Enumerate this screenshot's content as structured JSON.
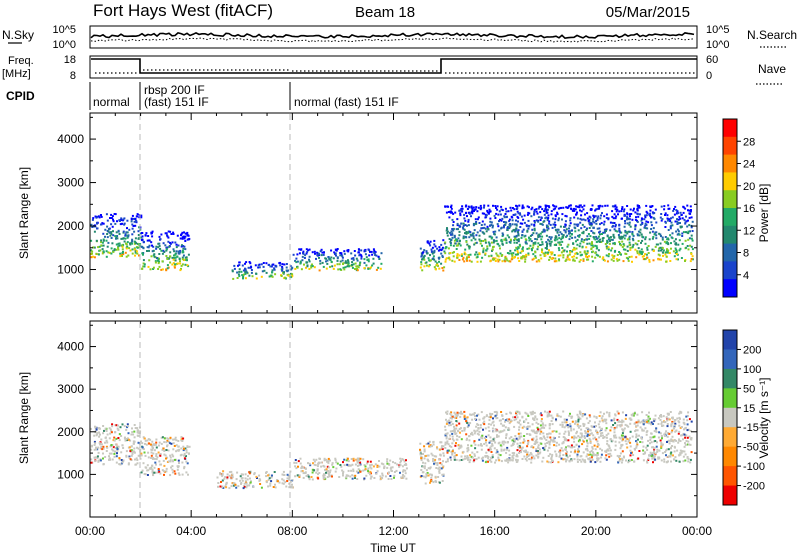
{
  "header": {
    "station": "Fort Hays West (fitACF)",
    "beam": "Beam 18",
    "date": "05/Mar/2015"
  },
  "top_panels": {
    "noise": {
      "left_label": "N.Sky",
      "left_ticks": [
        "10^5",
        "10^0"
      ],
      "right_ticks": [
        "10^5",
        "10^0"
      ],
      "right_label": "N.Search"
    },
    "freq": {
      "left_label_1": "Freq.",
      "left_label_2": "[MHz]",
      "left_ticks": [
        "18",
        "8"
      ],
      "right_ticks": [
        "60",
        "0"
      ],
      "right_label": "Nave"
    },
    "cpid": {
      "label": "CPID",
      "segments": [
        "normal",
        "rbsp 200 IF",
        "(fast) 151 IF",
        "normal (fast) 151 IF"
      ]
    }
  },
  "chart_data": [
    {
      "type": "heatmap",
      "name": "power",
      "ylabel": "Slant Range [km]",
      "ylim": [
        0,
        4600
      ],
      "yticks": [
        "1000",
        "2000",
        "3000",
        "4000"
      ],
      "xlim": [
        0,
        24
      ],
      "colorbar": {
        "label": "Power [dB]",
        "ticks": [
          "28",
          "24",
          "20",
          "16",
          "12",
          "8",
          "4"
        ],
        "colors": [
          "#ff0000",
          "#ff4400",
          "#ff8800",
          "#ffcc00",
          "#88cc22",
          "#22aa66",
          "#22886e",
          "#2266aa",
          "#1a44cc",
          "#0000ff"
        ]
      },
      "scatter_bands": [
        {
          "t0": 0.0,
          "t1": 2.0,
          "lo": 1300,
          "hi": 2300
        },
        {
          "t0": 2.0,
          "t1": 3.9,
          "lo": 1000,
          "hi": 1900
        },
        {
          "t0": 5.6,
          "t1": 8.0,
          "lo": 800,
          "hi": 1200
        },
        {
          "t0": 8.0,
          "t1": 11.5,
          "lo": 1000,
          "hi": 1500
        },
        {
          "t0": 13.0,
          "t1": 14.0,
          "lo": 1000,
          "hi": 1700
        },
        {
          "t0": 14.0,
          "t1": 23.8,
          "lo": 1200,
          "hi": 2500
        }
      ]
    },
    {
      "type": "heatmap",
      "name": "velocity",
      "ylabel": "Slant Range [km]",
      "ylim": [
        0,
        4600
      ],
      "yticks": [
        "1000",
        "2000",
        "3000",
        "4000"
      ],
      "xlim": [
        0,
        24
      ],
      "xticks": [
        "00:00",
        "04:00",
        "08:00",
        "12:00",
        "16:00",
        "20:00",
        "00:00"
      ],
      "xlabel": "Time UT",
      "colorbar": {
        "label": "Velocity [m s⁻¹]",
        "ticks": [
          "200",
          "100",
          "50",
          "15",
          "-15",
          "-50",
          "-100",
          "-200"
        ],
        "colors": [
          "#2244aa",
          "#3366bb",
          "#338866",
          "#66cc33",
          "#c8c8c0",
          "#ffaa33",
          "#ff8800",
          "#ff5500",
          "#ee0000"
        ]
      },
      "scatter_bands": [
        {
          "t0": 0.0,
          "t1": 2.0,
          "lo": 1250,
          "hi": 2200
        },
        {
          "t0": 2.0,
          "t1": 3.9,
          "lo": 1000,
          "hi": 1900
        },
        {
          "t0": 5.0,
          "t1": 8.0,
          "lo": 700,
          "hi": 1100
        },
        {
          "t0": 8.0,
          "t1": 12.5,
          "lo": 900,
          "hi": 1400
        },
        {
          "t0": 13.0,
          "t1": 14.0,
          "lo": 800,
          "hi": 1800
        },
        {
          "t0": 14.0,
          "t1": 23.8,
          "lo": 1300,
          "hi": 2500
        }
      ]
    }
  ]
}
